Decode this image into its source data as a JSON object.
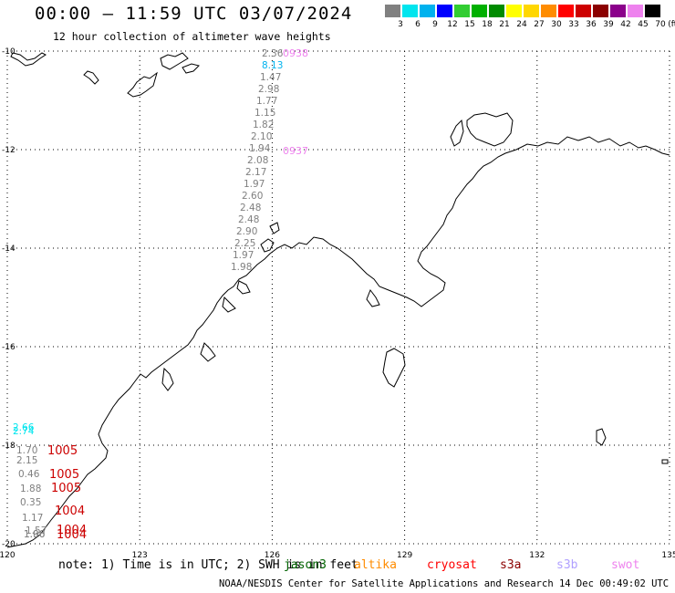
{
  "title": "00:00 – 11:59 UTC 03/07/2024",
  "subtitle": "12 hour collection of altimeter wave heights",
  "color_scale": {
    "unit": "(ft)",
    "bins": [
      {
        "label": "3",
        "color": "#808080"
      },
      {
        "label": "6",
        "color": "#00e5ee"
      },
      {
        "label": "9",
        "color": "#00b2ee"
      },
      {
        "label": "12",
        "color": "#0000ff"
      },
      {
        "label": "15",
        "color": "#32cd32"
      },
      {
        "label": "18",
        "color": "#00b000"
      },
      {
        "label": "21",
        "color": "#008b00"
      },
      {
        "label": "24",
        "color": "#ffff00"
      },
      {
        "label": "27",
        "color": "#ffd700"
      },
      {
        "label": "30",
        "color": "#ff8c00"
      },
      {
        "label": "33",
        "color": "#ff0000"
      },
      {
        "label": "36",
        "color": "#cd0000"
      },
      {
        "label": "39",
        "color": "#8b0000"
      },
      {
        "label": "42",
        "color": "#8b008b"
      },
      {
        "label": "45",
        "color": "#ee82ee"
      },
      {
        "label": "70",
        "color": "#000000"
      }
    ]
  },
  "axes": {
    "lon_labels": [
      "120",
      "123",
      "126",
      "129",
      "132",
      "135"
    ],
    "lat_labels": [
      "-10",
      "-12",
      "-14",
      "-16",
      "-18",
      "-20"
    ],
    "lon_range": [
      120,
      135
    ],
    "lat_range": [
      -20,
      -10
    ]
  },
  "track_north": {
    "satellite": "swot",
    "times": [
      {
        "label": "0938",
        "color": "#ee82ee"
      },
      {
        "label": "0937",
        "color": "#ee82ee"
      }
    ],
    "readings": [
      {
        "value": "2.36",
        "color": "#808080"
      },
      {
        "value": "8.13",
        "color": "#00b2ee"
      },
      {
        "value": "1.47",
        "color": "#808080"
      },
      {
        "value": "2.98",
        "color": "#808080"
      },
      {
        "value": "1.77",
        "color": "#808080"
      },
      {
        "value": "1.15",
        "color": "#808080"
      },
      {
        "value": "1.82",
        "color": "#808080"
      },
      {
        "value": "2.10",
        "color": "#808080"
      },
      {
        "value": "1.94",
        "color": "#808080"
      },
      {
        "value": "2.08",
        "color": "#808080"
      },
      {
        "value": "2.17",
        "color": "#808080"
      },
      {
        "value": "1.97",
        "color": "#808080"
      },
      {
        "value": "2.60",
        "color": "#808080"
      },
      {
        "value": "2.48",
        "color": "#808080"
      },
      {
        "value": "2.48",
        "color": "#808080"
      },
      {
        "value": "2.90",
        "color": "#808080"
      },
      {
        "value": "2.25",
        "color": "#808080"
      },
      {
        "value": "1.97",
        "color": "#808080"
      },
      {
        "value": "1.98",
        "color": "#808080"
      }
    ]
  },
  "track_southwest": {
    "satellite": "cryosat",
    "readings": [
      {
        "value": "2.66",
        "color": "#00e5ee"
      },
      {
        "value": "2.74",
        "color": "#00e5ee"
      },
      {
        "value": "1.70",
        "color": "#808080"
      },
      {
        "value": "2.15",
        "color": "#808080"
      },
      {
        "value": "0.46",
        "color": "#808080"
      },
      {
        "value": "1.88",
        "color": "#808080"
      },
      {
        "value": "0.35",
        "color": "#808080"
      },
      {
        "value": "1.17",
        "color": "#808080"
      },
      {
        "value": "1.06",
        "color": "#808080"
      },
      {
        "value": "1.57",
        "color": "#808080"
      },
      {
        "value": "1.90",
        "color": "#808080"
      }
    ],
    "times": [
      {
        "label": "1005",
        "color": "#cc0000"
      },
      {
        "label": "1005",
        "color": "#cc0000"
      },
      {
        "label": "1005",
        "color": "#cc0000"
      },
      {
        "label": "1004",
        "color": "#cc0000"
      },
      {
        "label": "1004",
        "color": "#cc0000"
      },
      {
        "label": "1004",
        "color": "#cc0000"
      }
    ]
  },
  "note_text": "note: 1) Time is in UTC; 2) SWH is in feet",
  "satellites": [
    {
      "name": "jason3",
      "color": "#006400"
    },
    {
      "name": "altika",
      "color": "#ff8c00"
    },
    {
      "name": "cryosat",
      "color": "#ff0000"
    },
    {
      "name": "s3a",
      "color": "#8b0000"
    },
    {
      "name": "s3b",
      "color": "#b0a0ff"
    },
    {
      "name": "swot",
      "color": "#ee82ee"
    }
  ],
  "credit": "NOAA/NESDIS Center for Satellite Applications and Research   14 Dec 00:49:02 UTC 2024"
}
